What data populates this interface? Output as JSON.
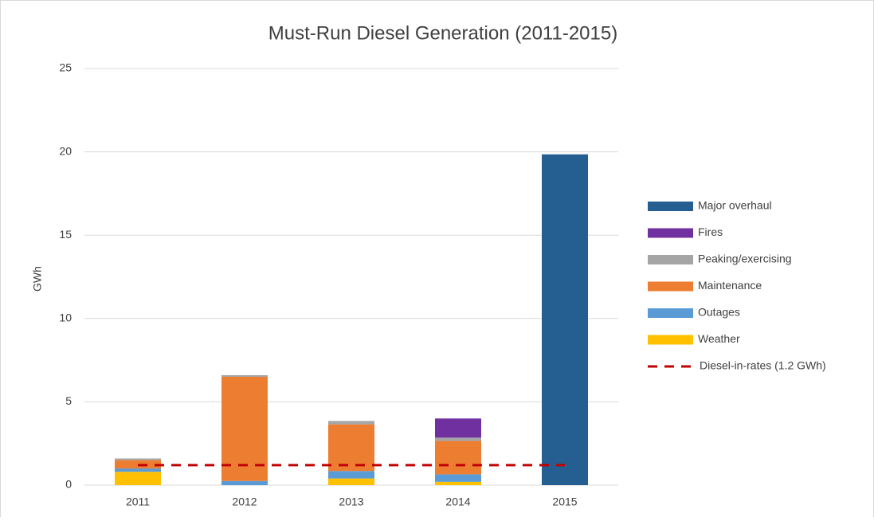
{
  "chart_data": {
    "type": "bar",
    "stacked": true,
    "title": "Must-Run Diesel Generation (2011-2015)",
    "y_label": "GWh",
    "categories": [
      "2011",
      "2012",
      "2013",
      "2014",
      "2015"
    ],
    "series": [
      {
        "name": "Weather",
        "color": "#ffc000",
        "values": [
          0.8,
          0,
          0.4,
          0.2,
          0
        ]
      },
      {
        "name": "Outages",
        "color": "#5b9bd5",
        "values": [
          0.2,
          0.25,
          0.45,
          0.45,
          0
        ]
      },
      {
        "name": "Maintenance",
        "color": "#ed7d31",
        "values": [
          0.5,
          6.25,
          2.8,
          2.0,
          0
        ]
      },
      {
        "name": "Peaking/exercising",
        "color": "#a5a5a5",
        "values": [
          0.1,
          0.1,
          0.2,
          0.2,
          0
        ]
      },
      {
        "name": "Fires",
        "color": "#7030a0",
        "values": [
          0,
          0,
          0,
          1.15,
          0
        ]
      },
      {
        "name": "Major overhaul",
        "color": "#255e91",
        "values": [
          0,
          0,
          0,
          0,
          19.85
        ]
      },
      {
        "name": "Diesel-in-rates (1.2 GWh)",
        "type": "line",
        "dashed": true,
        "color": "#c00000",
        "values": [
          1.2,
          1.2,
          1.2,
          1.2,
          1.2
        ]
      }
    ],
    "ylim": [
      0,
      25
    ],
    "yticks": [
      0,
      5,
      10,
      15,
      20,
      25
    ],
    "grid": true,
    "legend": "right"
  }
}
